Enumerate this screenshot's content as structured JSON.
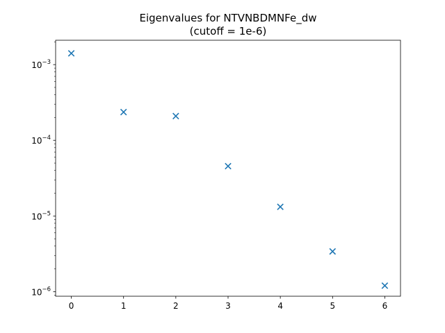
{
  "chart_data": {
    "type": "scatter",
    "title": "Eigenvalues for NTVNBDMNFe_dw",
    "subtitle": "(cutoff = 1e-6)",
    "xlabel": "",
    "ylabel": "",
    "x": [
      0,
      1,
      2,
      3,
      4,
      5,
      6
    ],
    "series": [
      {
        "values": [
          0.00141,
          0.000236,
          0.000209,
          4.55e-05,
          1.32e-05,
          3.4e-06,
          1.2e-06
        ],
        "marker": "x",
        "color": "#1f77b4"
      }
    ],
    "xlim": [
      -0.3,
      6.3
    ],
    "ylim": [
      8.7e-07,
      0.0021
    ],
    "y_scale": "log",
    "x_ticks": [
      "0",
      "1",
      "2",
      "3",
      "4",
      "5",
      "6"
    ],
    "y_ticks": [
      {
        "value": 1e-06,
        "base": "10",
        "exp": "−6"
      },
      {
        "value": 1e-05,
        "base": "10",
        "exp": "−5"
      },
      {
        "value": 0.0001,
        "base": "10",
        "exp": "−4"
      },
      {
        "value": 0.001,
        "base": "10",
        "exp": "−3"
      }
    ],
    "grid": false,
    "legend": "none"
  }
}
